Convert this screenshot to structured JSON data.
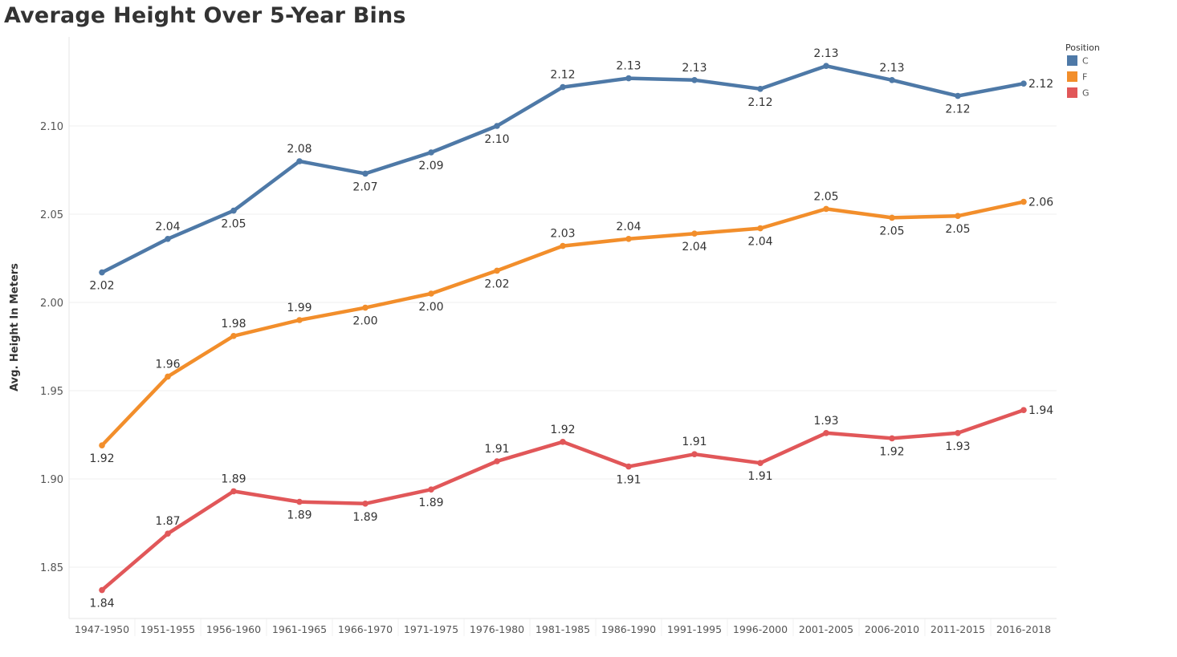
{
  "chart_data": {
    "type": "line",
    "title": "Average Height Over 5-Year Bins",
    "xlabel": "",
    "ylabel": "Avg. Height In Meters",
    "categories": [
      "1947-1950",
      "1951-1955",
      "1956-1960",
      "1961-1965",
      "1966-1970",
      "1971-1975",
      "1976-1980",
      "1981-1985",
      "1986-1990",
      "1991-1995",
      "1996-2000",
      "2001-2005",
      "2006-2010",
      "2011-2015",
      "2016-2018"
    ],
    "ylim": [
      1.83,
      2.155
    ],
    "yticks": [
      1.85,
      1.9,
      1.95,
      2.0,
      2.05,
      2.1
    ],
    "ytick_labels": [
      "1.85",
      "1.90",
      "1.95",
      "2.00",
      "2.05",
      "2.10"
    ],
    "grid": true,
    "legend": {
      "title": "Position",
      "placement": "top-right"
    },
    "series": [
      {
        "name": "C",
        "color": "#4e79a7",
        "values": [
          2.017,
          2.036,
          2.052,
          2.08,
          2.073,
          2.085,
          2.1,
          2.122,
          2.127,
          2.126,
          2.121,
          2.134,
          2.126,
          2.117,
          2.124
        ],
        "labels": [
          "2.02",
          "2.04",
          "2.05",
          "2.08",
          "2.07",
          "2.09",
          "2.10",
          "2.12",
          "2.13",
          "2.13",
          "2.12",
          "2.13",
          "2.13",
          "2.12",
          "2.12"
        ],
        "label_pos": [
          "below",
          "above",
          "below",
          "above",
          "below",
          "below",
          "below",
          "above",
          "above",
          "above",
          "below",
          "above",
          "above",
          "below",
          "right"
        ]
      },
      {
        "name": "F",
        "color": "#f28e2b",
        "values": [
          1.919,
          1.958,
          1.981,
          1.99,
          1.997,
          2.005,
          2.018,
          2.032,
          2.036,
          2.039,
          2.042,
          2.053,
          2.048,
          2.049,
          2.057
        ],
        "labels": [
          "1.92",
          "1.96",
          "1.98",
          "1.99",
          "2.00",
          "2.00",
          "2.02",
          "2.03",
          "2.04",
          "2.04",
          "2.04",
          "2.05",
          "2.05",
          "2.05",
          "2.06"
        ],
        "label_pos": [
          "below",
          "above",
          "above",
          "above",
          "below",
          "below",
          "below",
          "above",
          "above",
          "below",
          "below",
          "above",
          "below",
          "below",
          "right"
        ]
      },
      {
        "name": "G",
        "color": "#e15759",
        "values": [
          1.837,
          1.869,
          1.893,
          1.887,
          1.886,
          1.894,
          1.91,
          1.921,
          1.907,
          1.914,
          1.909,
          1.926,
          1.923,
          1.926,
          1.939
        ],
        "labels": [
          "1.84",
          "1.87",
          "1.89",
          "1.89",
          "1.89",
          "1.89",
          "1.91",
          "1.92",
          "1.91",
          "1.91",
          "1.91",
          "1.93",
          "1.92",
          "1.93",
          "1.94"
        ],
        "label_pos": [
          "below",
          "above",
          "above",
          "below",
          "below",
          "below",
          "above",
          "above",
          "below",
          "above",
          "below",
          "above",
          "below",
          "below",
          "right"
        ]
      }
    ]
  }
}
